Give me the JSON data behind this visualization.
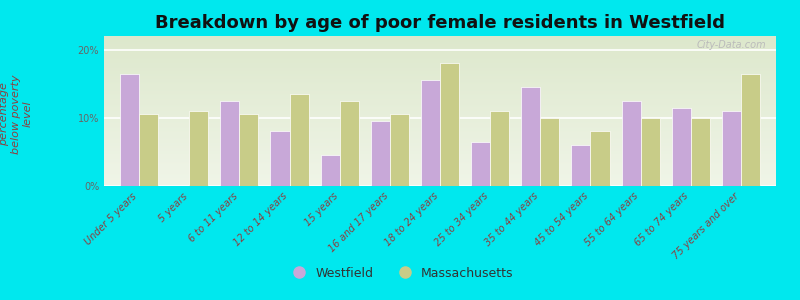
{
  "title": "Breakdown by age of poor female residents in Westfield",
  "ylabel": "percentage\nbelow poverty\nlevel",
  "categories": [
    "Under 5 years",
    "5 years",
    "6 to 11 years",
    "12 to 14 years",
    "15 years",
    "16 and 17 years",
    "18 to 24 years",
    "25 to 34 years",
    "35 to 44 years",
    "45 to 54 years",
    "55 to 64 years",
    "65 to 74 years",
    "75 years and over"
  ],
  "westfield": [
    16.5,
    0,
    12.5,
    8.0,
    4.5,
    9.5,
    15.5,
    6.5,
    14.5,
    6.0,
    12.5,
    11.5,
    11.0
  ],
  "massachusetts": [
    10.5,
    11.0,
    10.5,
    13.5,
    12.5,
    10.5,
    18.0,
    11.0,
    10.0,
    8.0,
    10.0,
    10.0,
    16.5
  ],
  "westfield_color": "#c8a8d8",
  "massachusetts_color": "#c8cc88",
  "background_top": "#dde8cc",
  "background_bottom": "#f0f5e8",
  "bg_outer": "#00e8ee",
  "ylim": [
    0,
    22
  ],
  "yticks": [
    0,
    10,
    20
  ],
  "ytick_labels": [
    "0%",
    "10%",
    "20%"
  ],
  "title_fontsize": 13,
  "axis_label_fontsize": 8,
  "tick_label_fontsize": 7,
  "legend_fontsize": 9,
  "bar_width": 0.38
}
